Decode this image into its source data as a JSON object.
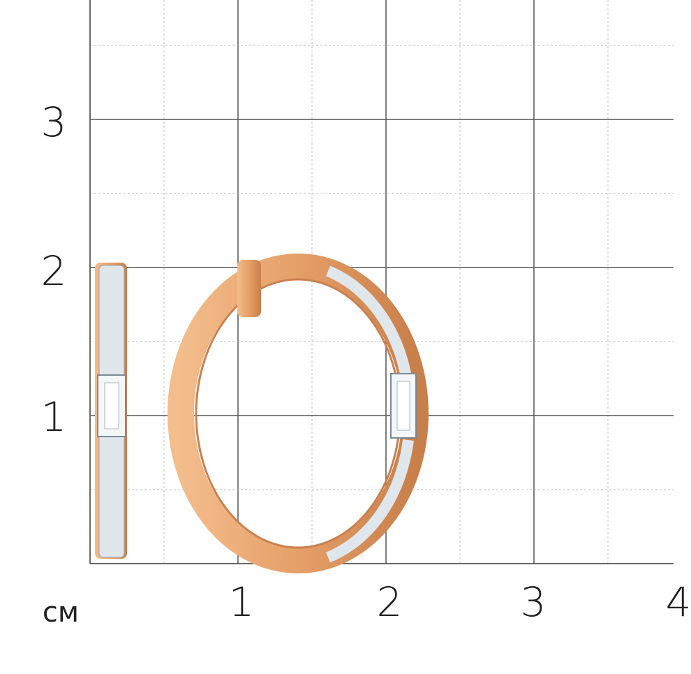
{
  "unit": "см",
  "x_labels": [
    "1",
    "2",
    "3",
    "4"
  ],
  "y_labels": [
    "1",
    "2",
    "3"
  ],
  "colors": {
    "gold": "#e8a46f",
    "gold_dark": "#c9824e",
    "grid": "#555555",
    "minor_grid": "#bdbdbd",
    "stone": "#eef3f7"
  }
}
